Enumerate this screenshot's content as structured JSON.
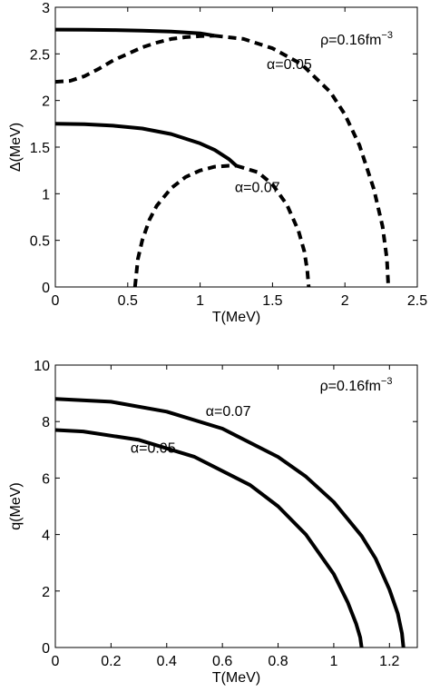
{
  "chart_data": [
    {
      "type": "line",
      "xlabel": "T(MeV)",
      "ylabel": "Δ(MeV)",
      "xlim": [
        0,
        2.5
      ],
      "ylim": [
        0,
        3
      ],
      "xticks": [
        "0",
        "0.5",
        "1",
        "1.5",
        "2",
        "2.5"
      ],
      "yticks": [
        "0",
        "0.5",
        "1",
        "1.5",
        "2",
        "2.5",
        "3"
      ],
      "annotations": [
        {
          "text": "ρ=0.16fm",
          "sup": "−3",
          "x": 1.83,
          "y": 2.6
        },
        {
          "text": "α=0.05",
          "x": 1.46,
          "y": 2.34
        },
        {
          "text": "α=0.07",
          "x": 1.24,
          "y": 1.02
        }
      ],
      "series": [
        {
          "style": "solid",
          "x": [
            0,
            0.2,
            0.4,
            0.6,
            0.8,
            1.0,
            1.1
          ],
          "y": [
            2.76,
            2.759,
            2.756,
            2.75,
            2.74,
            2.72,
            2.695
          ]
        },
        {
          "style": "dashed",
          "x": [
            0,
            0.1,
            0.2,
            0.3,
            0.4,
            0.5,
            0.6,
            0.7,
            0.8,
            0.9,
            1.0,
            1.1
          ],
          "y": [
            2.2,
            2.21,
            2.26,
            2.34,
            2.43,
            2.5,
            2.57,
            2.62,
            2.66,
            2.68,
            2.69,
            2.695
          ]
        },
        {
          "style": "dashed",
          "x": [
            1.1,
            1.3,
            1.5,
            1.7,
            1.9,
            2.0,
            2.1,
            2.2,
            2.26,
            2.29,
            2.3
          ],
          "y": [
            2.695,
            2.66,
            2.56,
            2.39,
            2.09,
            1.85,
            1.52,
            1.05,
            0.65,
            0.3,
            0
          ]
        },
        {
          "style": "solid",
          "x": [
            0,
            0.2,
            0.4,
            0.6,
            0.8,
            1.0,
            1.1,
            1.2,
            1.25
          ],
          "y": [
            1.75,
            1.745,
            1.73,
            1.7,
            1.64,
            1.54,
            1.47,
            1.37,
            1.3
          ]
        },
        {
          "style": "dashed",
          "x": [
            0.55,
            0.57,
            0.6,
            0.65,
            0.7,
            0.8,
            0.9,
            1.0,
            1.1,
            1.2,
            1.25
          ],
          "y": [
            0,
            0.3,
            0.5,
            0.72,
            0.87,
            1.06,
            1.18,
            1.25,
            1.29,
            1.3,
            1.3
          ]
        },
        {
          "style": "dashed",
          "x": [
            1.25,
            1.4,
            1.5,
            1.6,
            1.68,
            1.72,
            1.74,
            1.75
          ],
          "y": [
            1.3,
            1.23,
            1.1,
            0.88,
            0.6,
            0.38,
            0.18,
            0
          ]
        }
      ]
    },
    {
      "type": "line",
      "xlabel": "T(MeV)",
      "ylabel": "q(MeV)",
      "xlim": [
        0,
        1.3
      ],
      "ylim": [
        0,
        10
      ],
      "xticks": [
        "0",
        "0.2",
        "0.4",
        "0.6",
        "0.8",
        "1",
        "1.2"
      ],
      "yticks": [
        "0",
        "2",
        "4",
        "6",
        "8",
        "10"
      ],
      "annotations": [
        {
          "text": "ρ=0.16fm",
          "sup": "−3",
          "x": 0.95,
          "y": 9.1
        },
        {
          "text": "α=0.07",
          "x": 0.54,
          "y": 8.2
        },
        {
          "text": "α=0.05",
          "x": 0.27,
          "y": 6.9
        }
      ],
      "series": [
        {
          "name": "α=0.07",
          "style": "solid",
          "x": [
            0,
            0.2,
            0.4,
            0.6,
            0.8,
            0.9,
            1.0,
            1.1,
            1.15,
            1.2,
            1.23,
            1.245,
            1.25
          ],
          "y": [
            8.8,
            8.7,
            8.35,
            7.75,
            6.75,
            6.05,
            5.15,
            3.95,
            3.15,
            2.05,
            1.2,
            0.5,
            0
          ]
        },
        {
          "name": "α=0.05",
          "style": "solid",
          "x": [
            0,
            0.1,
            0.3,
            0.5,
            0.7,
            0.8,
            0.9,
            1.0,
            1.05,
            1.08,
            1.095,
            1.1
          ],
          "y": [
            7.7,
            7.65,
            7.35,
            6.75,
            5.75,
            5.0,
            4.0,
            2.6,
            1.6,
            0.85,
            0.35,
            0
          ]
        }
      ]
    }
  ]
}
